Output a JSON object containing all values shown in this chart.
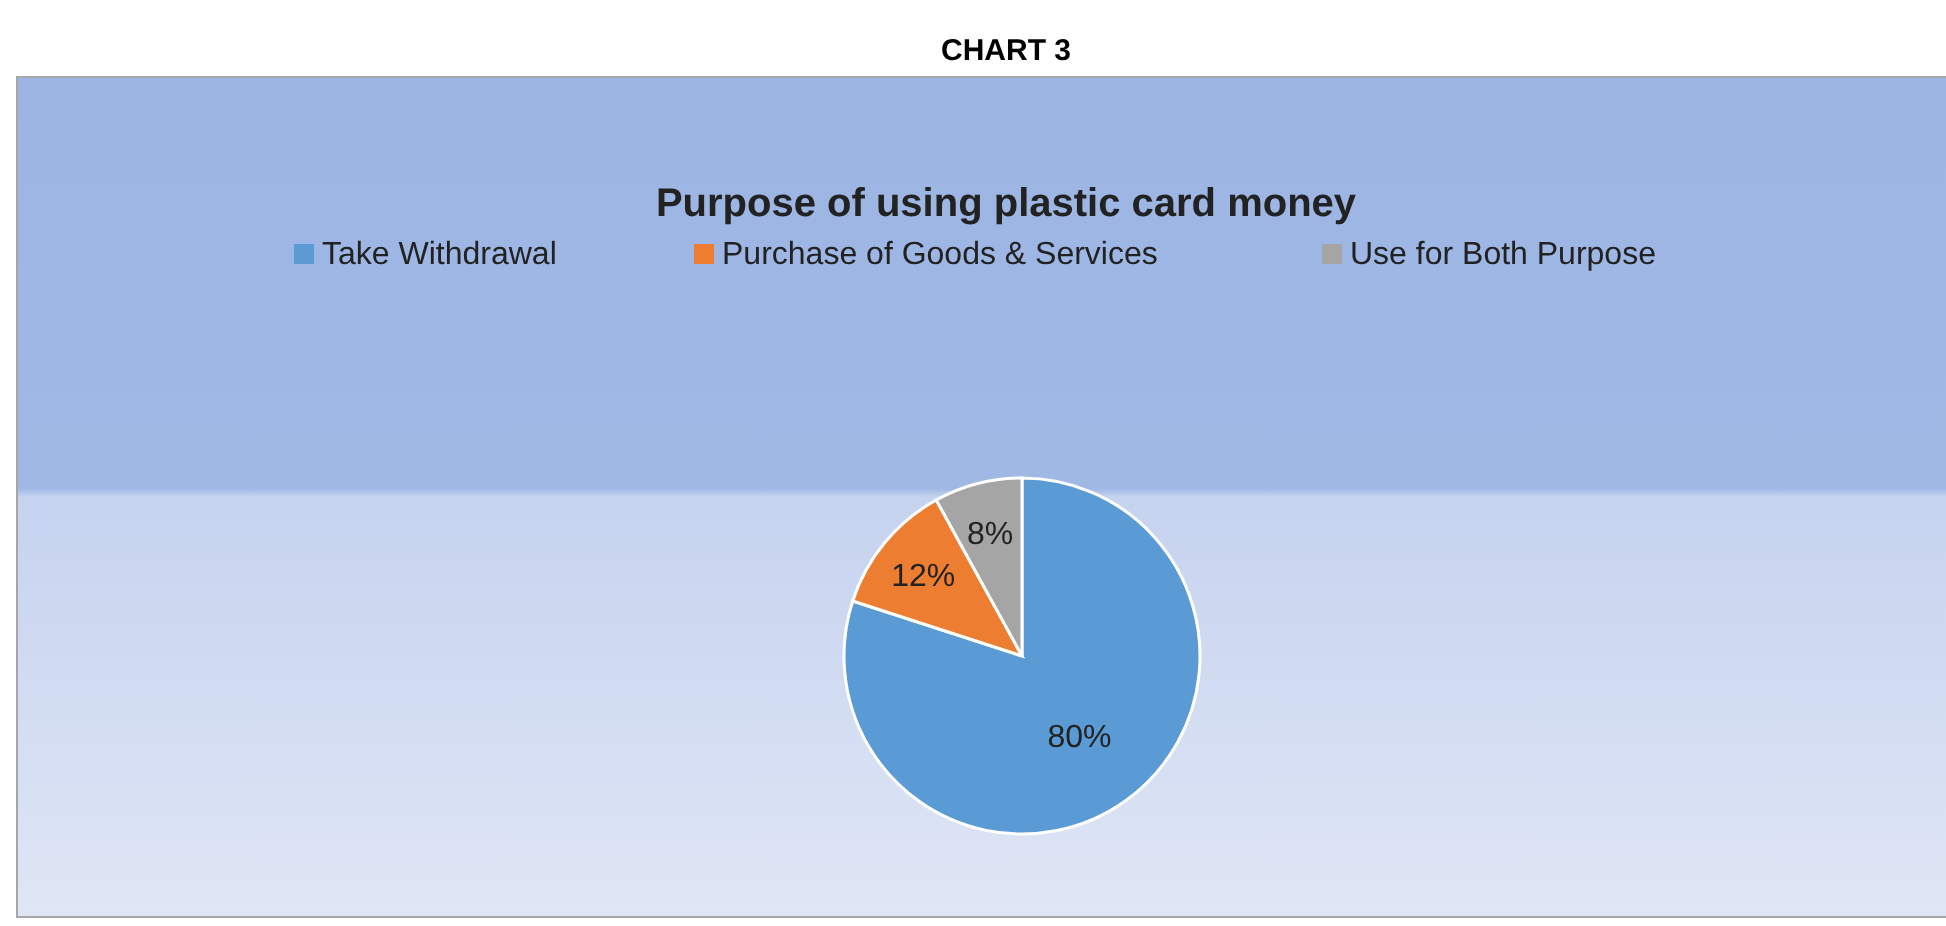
{
  "chart_data": {
    "type": "pie",
    "title": "Purpose of using plastic card money",
    "annotations": [
      "CHART 3"
    ],
    "categories": [
      "Take Withdrawal",
      "Purchase of Goods & Services",
      "Use for Both Purpose"
    ],
    "values": [
      80,
      12,
      8
    ],
    "colors": [
      "#5b9bd5",
      "#ed7d31",
      "#a5a5a5"
    ],
    "value_labels": [
      "80%",
      "12%",
      "8%"
    ],
    "data_labels": true,
    "legend": "top"
  }
}
